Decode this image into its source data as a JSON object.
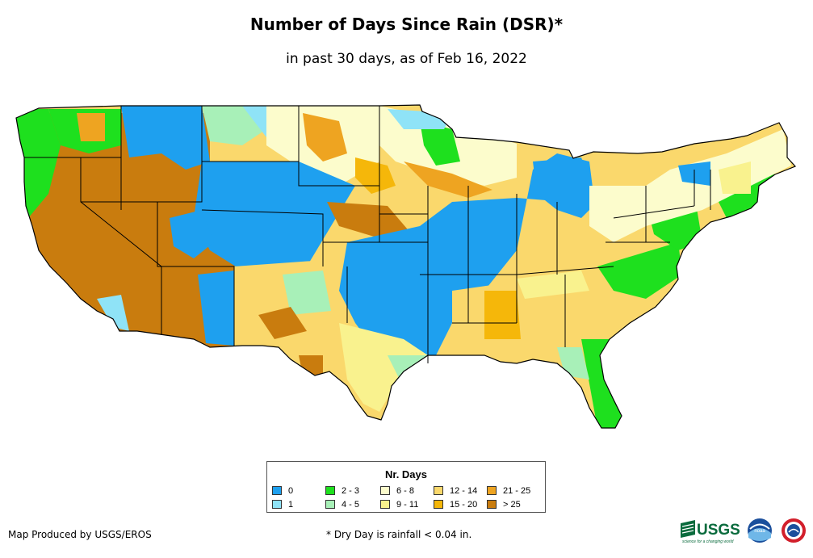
{
  "title": "Number of Days Since Rain (DSR)*",
  "subtitle": "in past 30 days, as of Feb 16, 2022",
  "legend": {
    "title": "Nr. Days",
    "items": [
      {
        "label": "0",
        "color": "#1ea0ef"
      },
      {
        "label": "1",
        "color": "#8fe3f7"
      },
      {
        "label": "2 - 3",
        "color": "#1ee01e"
      },
      {
        "label": "4 - 5",
        "color": "#a8f0b8"
      },
      {
        "label": "6 - 8",
        "color": "#fcfccc"
      },
      {
        "label": "9 - 11",
        "color": "#f9f28e"
      },
      {
        "label": "12 - 14",
        "color": "#fad86c"
      },
      {
        "label": "15 - 20",
        "color": "#f5b70a"
      },
      {
        "label": "21 - 25",
        "color": "#eea421"
      },
      {
        "label": "> 25",
        "color": "#c97c0e"
      }
    ]
  },
  "credit": "Map Produced by USGS/EROS",
  "footnote": "* Dry Day is rainfall < 0.04 in.",
  "logos": {
    "usgs_text": "USGS",
    "usgs_tagline": "science for a changing world",
    "noaa_text": "noaa"
  }
}
